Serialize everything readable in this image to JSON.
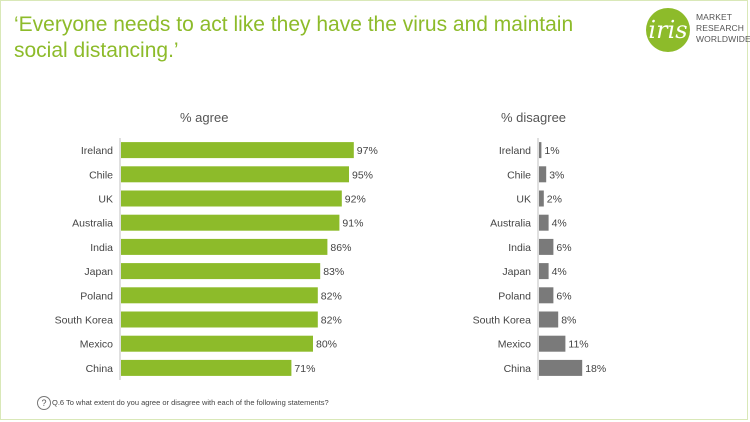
{
  "header": {
    "title": "‘Everyone needs to act like they have the virus and maintain social distancing.’"
  },
  "logo": {
    "mark": "iris",
    "lines": [
      "MARKET",
      "RESEARCH",
      "WORLDWIDE"
    ]
  },
  "footer": {
    "icon": "question-circle-icon",
    "glyph": "?",
    "note": "Q.6 To what extent do you agree or disagree with each of the following statements?"
  },
  "colors": {
    "title": "#8dbb2a",
    "agree_bar": "#8dbb2a",
    "disagree_bar": "#7a7a7a"
  },
  "chart_data": [
    {
      "type": "bar",
      "orientation": "horizontal",
      "title": "% agree",
      "categories": [
        "Ireland",
        "Chile",
        "UK",
        "Australia",
        "India",
        "Japan",
        "Poland",
        "South Korea",
        "Mexico",
        "China"
      ],
      "values": [
        97,
        95,
        92,
        91,
        86,
        83,
        82,
        82,
        80,
        71
      ],
      "value_labels": [
        "97%",
        "95%",
        "92%",
        "91%",
        "86%",
        "83%",
        "82%",
        "82%",
        "80%",
        "71%"
      ],
      "xlim": [
        0,
        100
      ],
      "grid": false
    },
    {
      "type": "bar",
      "orientation": "horizontal",
      "title": "% disagree",
      "categories": [
        "Ireland",
        "Chile",
        "UK",
        "Australia",
        "India",
        "Japan",
        "Poland",
        "South Korea",
        "Mexico",
        "China"
      ],
      "values": [
        1,
        3,
        2,
        4,
        6,
        4,
        6,
        8,
        11,
        18
      ],
      "value_labels": [
        "1%",
        "3%",
        "2%",
        "4%",
        "6%",
        "4%",
        "6%",
        "8%",
        "11%",
        "18%"
      ],
      "xlim": [
        0,
        100
      ],
      "grid": false
    }
  ]
}
